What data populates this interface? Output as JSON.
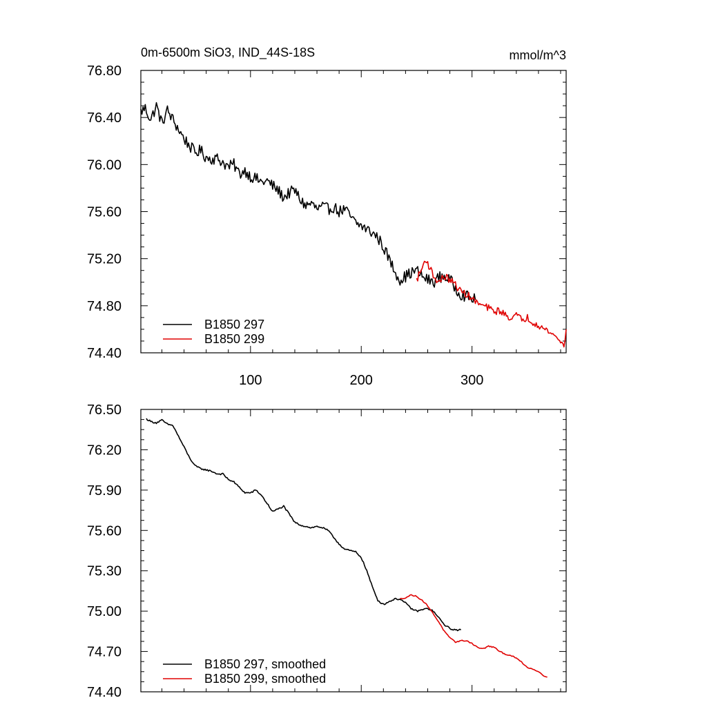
{
  "title_left": "0m-6500m SiO3, IND_44S-18S",
  "title_right": "mmol/m^3",
  "colors": {
    "series_297": "#000000",
    "series_299": "#e00000",
    "axes": "#000000"
  },
  "chart_data": [
    {
      "type": "line",
      "title": "0m-6500m SiO3, IND_44S-18S",
      "units": "mmol/m^3",
      "xlabel": "",
      "ylabel": "",
      "xlim": [
        1,
        385
      ],
      "ylim": [
        74.4,
        76.8
      ],
      "xticks": [
        100,
        200,
        300
      ],
      "xtick_labels": [
        "100",
        "200",
        "300"
      ],
      "yticks": [
        74.4,
        74.8,
        75.2,
        75.6,
        76.0,
        76.4,
        76.8
      ],
      "ytick_labels": [
        "74.40",
        "74.80",
        "75.20",
        "75.60",
        "76.00",
        "76.40",
        "76.80"
      ],
      "legend_position": "bottom-left",
      "grid": false,
      "series": [
        {
          "name": "B1850 297",
          "color": "#000000",
          "noise": 0.05,
          "points": [
            [
              1,
              76.45
            ],
            [
              5,
              76.48
            ],
            [
              10,
              76.38
            ],
            [
              15,
              76.5
            ],
            [
              20,
              76.35
            ],
            [
              25,
              76.46
            ],
            [
              30,
              76.38
            ],
            [
              35,
              76.3
            ],
            [
              40,
              76.22
            ],
            [
              45,
              76.16
            ],
            [
              50,
              76.1
            ],
            [
              55,
              76.12
            ],
            [
              60,
              76.06
            ],
            [
              65,
              76.05
            ],
            [
              70,
              76.05
            ],
            [
              75,
              76.02
            ],
            [
              80,
              75.98
            ],
            [
              85,
              76.0
            ],
            [
              90,
              75.92
            ],
            [
              95,
              75.95
            ],
            [
              100,
              75.9
            ],
            [
              105,
              75.88
            ],
            [
              110,
              75.85
            ],
            [
              115,
              75.86
            ],
            [
              120,
              75.82
            ],
            [
              125,
              75.78
            ],
            [
              130,
              75.72
            ],
            [
              135,
              75.76
            ],
            [
              140,
              75.78
            ],
            [
              145,
              75.7
            ],
            [
              150,
              75.65
            ],
            [
              155,
              75.67
            ],
            [
              160,
              75.62
            ],
            [
              165,
              75.64
            ],
            [
              170,
              75.62
            ],
            [
              175,
              75.64
            ],
            [
              180,
              75.6
            ],
            [
              185,
              75.62
            ],
            [
              190,
              75.56
            ],
            [
              195,
              75.5
            ],
            [
              200,
              75.48
            ],
            [
              205,
              75.45
            ],
            [
              210,
              75.42
            ],
            [
              215,
              75.38
            ],
            [
              220,
              75.3
            ],
            [
              225,
              75.2
            ],
            [
              230,
              75.1
            ],
            [
              235,
              75.02
            ],
            [
              240,
              75.05
            ],
            [
              245,
              75.08
            ],
            [
              250,
              75.1
            ],
            [
              255,
              75.05
            ],
            [
              260,
              75.02
            ],
            [
              265,
              75.0
            ],
            [
              270,
              75.04
            ],
            [
              275,
              75.05
            ],
            [
              280,
              75.02
            ],
            [
              285,
              74.95
            ],
            [
              290,
              74.9
            ],
            [
              295,
              74.88
            ],
            [
              300,
              74.86
            ],
            [
              303,
              74.85
            ]
          ]
        },
        {
          "name": "B1850 299",
          "color": "#e00000",
          "noise": 0.03,
          "points": [
            [
              250,
              75.02
            ],
            [
              255,
              75.12
            ],
            [
              258,
              75.2
            ],
            [
              262,
              75.12
            ],
            [
              266,
              75.04
            ],
            [
              270,
              75.0
            ],
            [
              275,
              75.05
            ],
            [
              280,
              75.02
            ],
            [
              285,
              74.98
            ],
            [
              290,
              74.92
            ],
            [
              295,
              74.9
            ],
            [
              300,
              74.86
            ],
            [
              305,
              74.82
            ],
            [
              310,
              74.8
            ],
            [
              315,
              74.78
            ],
            [
              320,
              74.75
            ],
            [
              325,
              74.76
            ],
            [
              330,
              74.72
            ],
            [
              335,
              74.7
            ],
            [
              340,
              74.72
            ],
            [
              345,
              74.68
            ],
            [
              350,
              74.7
            ],
            [
              355,
              74.66
            ],
            [
              360,
              74.64
            ],
            [
              365,
              74.6
            ],
            [
              370,
              74.58
            ],
            [
              375,
              74.54
            ],
            [
              380,
              74.5
            ],
            [
              383,
              74.45
            ],
            [
              385,
              74.6
            ]
          ]
        }
      ]
    },
    {
      "type": "line",
      "title": "",
      "xlabel": "",
      "ylabel": "",
      "xlim": [
        1,
        385
      ],
      "ylim": [
        74.4,
        76.5
      ],
      "xticks": [
        100,
        200,
        300
      ],
      "yticks": [
        74.4,
        74.7,
        75.0,
        75.3,
        75.6,
        75.9,
        76.2,
        76.5
      ],
      "ytick_labels": [
        "74.40",
        "74.70",
        "75.00",
        "75.30",
        "75.60",
        "75.90",
        "76.20",
        "76.50"
      ],
      "legend_position": "bottom-left",
      "grid": false,
      "series": [
        {
          "name": "B1850 297, smoothed",
          "color": "#000000",
          "noise": 0.006,
          "points": [
            [
              6,
              76.43
            ],
            [
              10,
              76.41
            ],
            [
              15,
              76.4
            ],
            [
              20,
              76.42
            ],
            [
              25,
              76.39
            ],
            [
              30,
              76.38
            ],
            [
              35,
              76.3
            ],
            [
              40,
              76.22
            ],
            [
              45,
              76.14
            ],
            [
              50,
              76.08
            ],
            [
              55,
              76.06
            ],
            [
              60,
              76.05
            ],
            [
              65,
              76.04
            ],
            [
              70,
              76.02
            ],
            [
              75,
              76.02
            ],
            [
              80,
              75.98
            ],
            [
              85,
              75.96
            ],
            [
              90,
              75.92
            ],
            [
              95,
              75.88
            ],
            [
              100,
              75.88
            ],
            [
              105,
              75.9
            ],
            [
              110,
              75.86
            ],
            [
              115,
              75.8
            ],
            [
              120,
              75.74
            ],
            [
              125,
              75.76
            ],
            [
              130,
              75.78
            ],
            [
              135,
              75.72
            ],
            [
              140,
              75.66
            ],
            [
              145,
              75.64
            ],
            [
              150,
              75.63
            ],
            [
              155,
              75.62
            ],
            [
              160,
              75.63
            ],
            [
              165,
              75.62
            ],
            [
              170,
              75.6
            ],
            [
              175,
              75.55
            ],
            [
              180,
              75.5
            ],
            [
              185,
              75.46
            ],
            [
              190,
              75.45
            ],
            [
              195,
              75.44
            ],
            [
              200,
              75.4
            ],
            [
              205,
              75.3
            ],
            [
              210,
              75.18
            ],
            [
              215,
              75.08
            ],
            [
              220,
              75.05
            ],
            [
              225,
              75.07
            ],
            [
              230,
              75.09
            ],
            [
              235,
              75.09
            ],
            [
              240,
              75.06
            ],
            [
              245,
              75.02
            ],
            [
              250,
              75.0
            ],
            [
              255,
              75.01
            ],
            [
              260,
              75.02
            ],
            [
              265,
              75.0
            ],
            [
              270,
              74.95
            ],
            [
              275,
              74.9
            ],
            [
              280,
              74.87
            ],
            [
              285,
              74.86
            ],
            [
              290,
              74.86
            ]
          ]
        },
        {
          "name": "B1850 299, smoothed",
          "color": "#e00000",
          "noise": 0.004,
          "points": [
            [
              235,
              75.09
            ],
            [
              240,
              75.1
            ],
            [
              245,
              75.12
            ],
            [
              250,
              75.11
            ],
            [
              255,
              75.08
            ],
            [
              260,
              75.04
            ],
            [
              265,
              74.98
            ],
            [
              270,
              74.92
            ],
            [
              275,
              74.85
            ],
            [
              280,
              74.8
            ],
            [
              285,
              74.77
            ],
            [
              290,
              74.78
            ],
            [
              295,
              74.78
            ],
            [
              300,
              74.76
            ],
            [
              305,
              74.73
            ],
            [
              310,
              74.72
            ],
            [
              315,
              74.74
            ],
            [
              320,
              74.73
            ],
            [
              325,
              74.7
            ],
            [
              330,
              74.68
            ],
            [
              335,
              74.67
            ],
            [
              340,
              74.65
            ],
            [
              345,
              74.62
            ],
            [
              350,
              74.58
            ],
            [
              355,
              74.57
            ],
            [
              360,
              74.55
            ],
            [
              365,
              74.52
            ],
            [
              368,
              74.51
            ]
          ]
        }
      ]
    }
  ]
}
